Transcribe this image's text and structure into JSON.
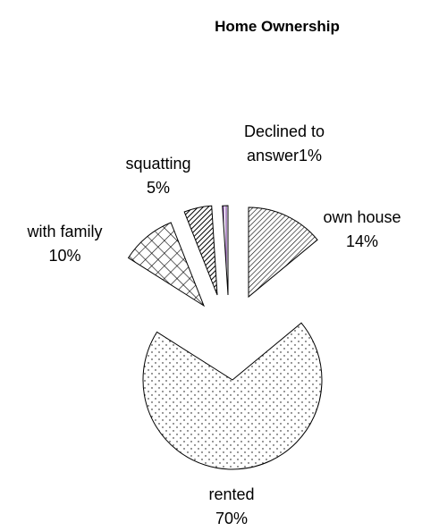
{
  "chart_data": {
    "type": "pie",
    "title": "Home Ownership",
    "categories": [
      "own house",
      "rented",
      "with family",
      "squatting",
      "Declined to answer"
    ],
    "values": [
      14,
      70,
      10,
      5,
      1
    ],
    "value_labels": [
      "14%",
      "70%",
      "10%",
      "5%",
      "1%"
    ]
  }
}
